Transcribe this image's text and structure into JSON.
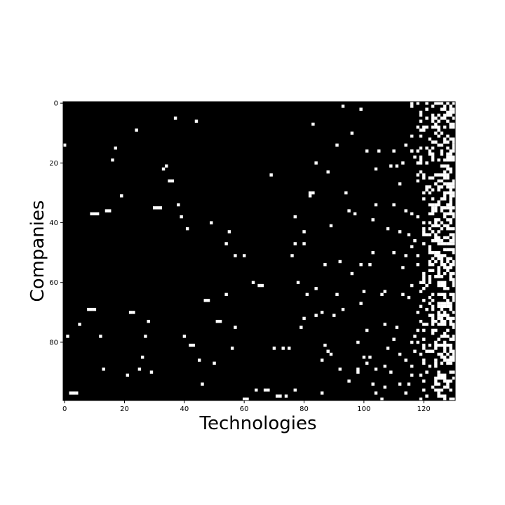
{
  "chart_data": {
    "type": "heatmap",
    "xlabel": "Technologies",
    "ylabel": "Companies",
    "xlim": [
      0,
      131
    ],
    "ylim": [
      0,
      100
    ],
    "y_inverted": true,
    "colormap": {
      "zero": "#000000",
      "one": "#ffffff"
    },
    "xticks": [
      0,
      20,
      40,
      60,
      80,
      100,
      120
    ],
    "yticks": [
      0,
      20,
      40,
      60,
      80
    ],
    "xtick_labels": [
      "0",
      "20",
      "40",
      "60",
      "80",
      "100",
      "120"
    ],
    "ytick_labels": [
      "0",
      "20",
      "40",
      "60",
      "80"
    ],
    "grid": false,
    "legend": "none",
    "cells": [
      [
        93,
        1
      ],
      [
        99,
        2
      ],
      [
        119,
        4
      ],
      [
        37,
        5
      ],
      [
        44,
        6
      ],
      [
        83,
        7
      ],
      [
        121,
        8
      ],
      [
        24,
        9
      ],
      [
        96,
        10
      ],
      [
        0,
        14
      ],
      [
        91,
        14
      ],
      [
        114,
        14
      ],
      [
        101,
        16
      ],
      [
        105,
        16
      ],
      [
        110,
        16
      ],
      [
        116,
        16
      ],
      [
        119,
        18
      ],
      [
        17,
        15
      ],
      [
        16,
        19
      ],
      [
        84,
        20
      ],
      [
        113,
        20
      ],
      [
        118,
        20
      ],
      [
        33,
        22
      ],
      [
        34,
        21
      ],
      [
        88,
        23
      ],
      [
        69,
        24
      ],
      [
        104,
        22
      ],
      [
        109,
        21
      ],
      [
        111,
        21
      ],
      [
        35,
        26
      ],
      [
        36,
        26
      ],
      [
        112,
        27
      ],
      [
        19,
        31
      ],
      [
        82,
        30
      ],
      [
        83,
        30
      ],
      [
        82,
        31
      ],
      [
        94,
        30
      ],
      [
        38,
        34
      ],
      [
        104,
        34
      ],
      [
        110,
        34
      ],
      [
        9,
        37
      ],
      [
        10,
        37
      ],
      [
        11,
        37
      ],
      [
        14,
        36
      ],
      [
        15,
        36
      ],
      [
        30,
        35
      ],
      [
        31,
        35
      ],
      [
        32,
        35
      ],
      [
        95,
        36
      ],
      [
        97,
        37
      ],
      [
        114,
        36
      ],
      [
        118,
        38
      ],
      [
        39,
        38
      ],
      [
        77,
        38
      ],
      [
        49,
        40
      ],
      [
        89,
        41
      ],
      [
        103,
        39
      ],
      [
        108,
        42
      ],
      [
        41,
        42
      ],
      [
        55,
        43
      ],
      [
        80,
        43
      ],
      [
        112,
        43
      ],
      [
        115,
        44
      ],
      [
        54,
        47
      ],
      [
        77,
        47
      ],
      [
        80,
        47
      ],
      [
        116,
        48
      ],
      [
        57,
        51
      ],
      [
        60,
        51
      ],
      [
        76,
        51
      ],
      [
        103,
        50
      ],
      [
        110,
        50
      ],
      [
        114,
        51
      ],
      [
        87,
        54
      ],
      [
        92,
        53
      ],
      [
        99,
        54
      ],
      [
        102,
        54
      ],
      [
        113,
        55
      ],
      [
        96,
        57
      ],
      [
        63,
        60
      ],
      [
        65,
        61
      ],
      [
        66,
        61
      ],
      [
        78,
        60
      ],
      [
        84,
        62
      ],
      [
        100,
        63
      ],
      [
        107,
        63
      ],
      [
        106,
        64
      ],
      [
        116,
        61
      ],
      [
        119,
        63
      ],
      [
        54,
        64
      ],
      [
        81,
        64
      ],
      [
        91,
        64
      ],
      [
        99,
        67
      ],
      [
        113,
        64
      ],
      [
        115,
        65
      ],
      [
        8,
        69
      ],
      [
        9,
        69
      ],
      [
        10,
        69
      ],
      [
        22,
        70
      ],
      [
        23,
        70
      ],
      [
        47,
        66
      ],
      [
        48,
        66
      ],
      [
        84,
        71
      ],
      [
        86,
        70
      ],
      [
        90,
        71
      ],
      [
        93,
        69
      ],
      [
        80,
        72
      ],
      [
        28,
        73
      ],
      [
        51,
        73
      ],
      [
        52,
        73
      ],
      [
        5,
        74
      ],
      [
        57,
        75
      ],
      [
        79,
        75
      ],
      [
        101,
        76
      ],
      [
        107,
        74
      ],
      [
        111,
        75
      ],
      [
        118,
        76
      ],
      [
        1,
        78
      ],
      [
        12,
        78
      ],
      [
        27,
        78
      ],
      [
        40,
        78
      ],
      [
        42,
        81
      ],
      [
        43,
        81
      ],
      [
        110,
        79
      ],
      [
        116,
        80
      ],
      [
        98,
        80
      ],
      [
        87,
        81
      ],
      [
        88,
        83
      ],
      [
        89,
        84
      ],
      [
        56,
        82
      ],
      [
        70,
        82
      ],
      [
        73,
        82
      ],
      [
        75,
        82
      ],
      [
        108,
        82
      ],
      [
        26,
        85
      ],
      [
        45,
        86
      ],
      [
        86,
        86
      ],
      [
        100,
        85
      ],
      [
        102,
        85
      ],
      [
        112,
        84
      ],
      [
        114,
        86
      ],
      [
        50,
        87
      ],
      [
        101,
        87
      ],
      [
        107,
        88
      ],
      [
        13,
        89
      ],
      [
        25,
        89
      ],
      [
        29,
        90
      ],
      [
        92,
        89
      ],
      [
        98,
        89
      ],
      [
        98,
        90
      ],
      [
        104,
        89
      ],
      [
        109,
        90
      ],
      [
        21,
        91
      ],
      [
        95,
        93
      ],
      [
        46,
        94
      ],
      [
        103,
        94
      ],
      [
        107,
        95
      ],
      [
        112,
        94
      ],
      [
        115,
        94
      ],
      [
        64,
        96
      ],
      [
        67,
        96
      ],
      [
        68,
        96
      ],
      [
        77,
        96
      ],
      [
        86,
        97
      ],
      [
        104,
        97
      ],
      [
        2,
        97
      ],
      [
        3,
        97
      ],
      [
        4,
        97
      ],
      [
        60,
        99
      ],
      [
        61,
        99
      ],
      [
        71,
        98
      ],
      [
        72,
        98
      ],
      [
        74,
        98
      ],
      [
        106,
        99
      ],
      [
        114,
        97
      ],
      [
        119,
        99
      ]
    ],
    "dense_columns": {
      "from": 116,
      "to": 130,
      "density_start": 0.05,
      "density_end": 0.55,
      "seed": 7
    }
  }
}
